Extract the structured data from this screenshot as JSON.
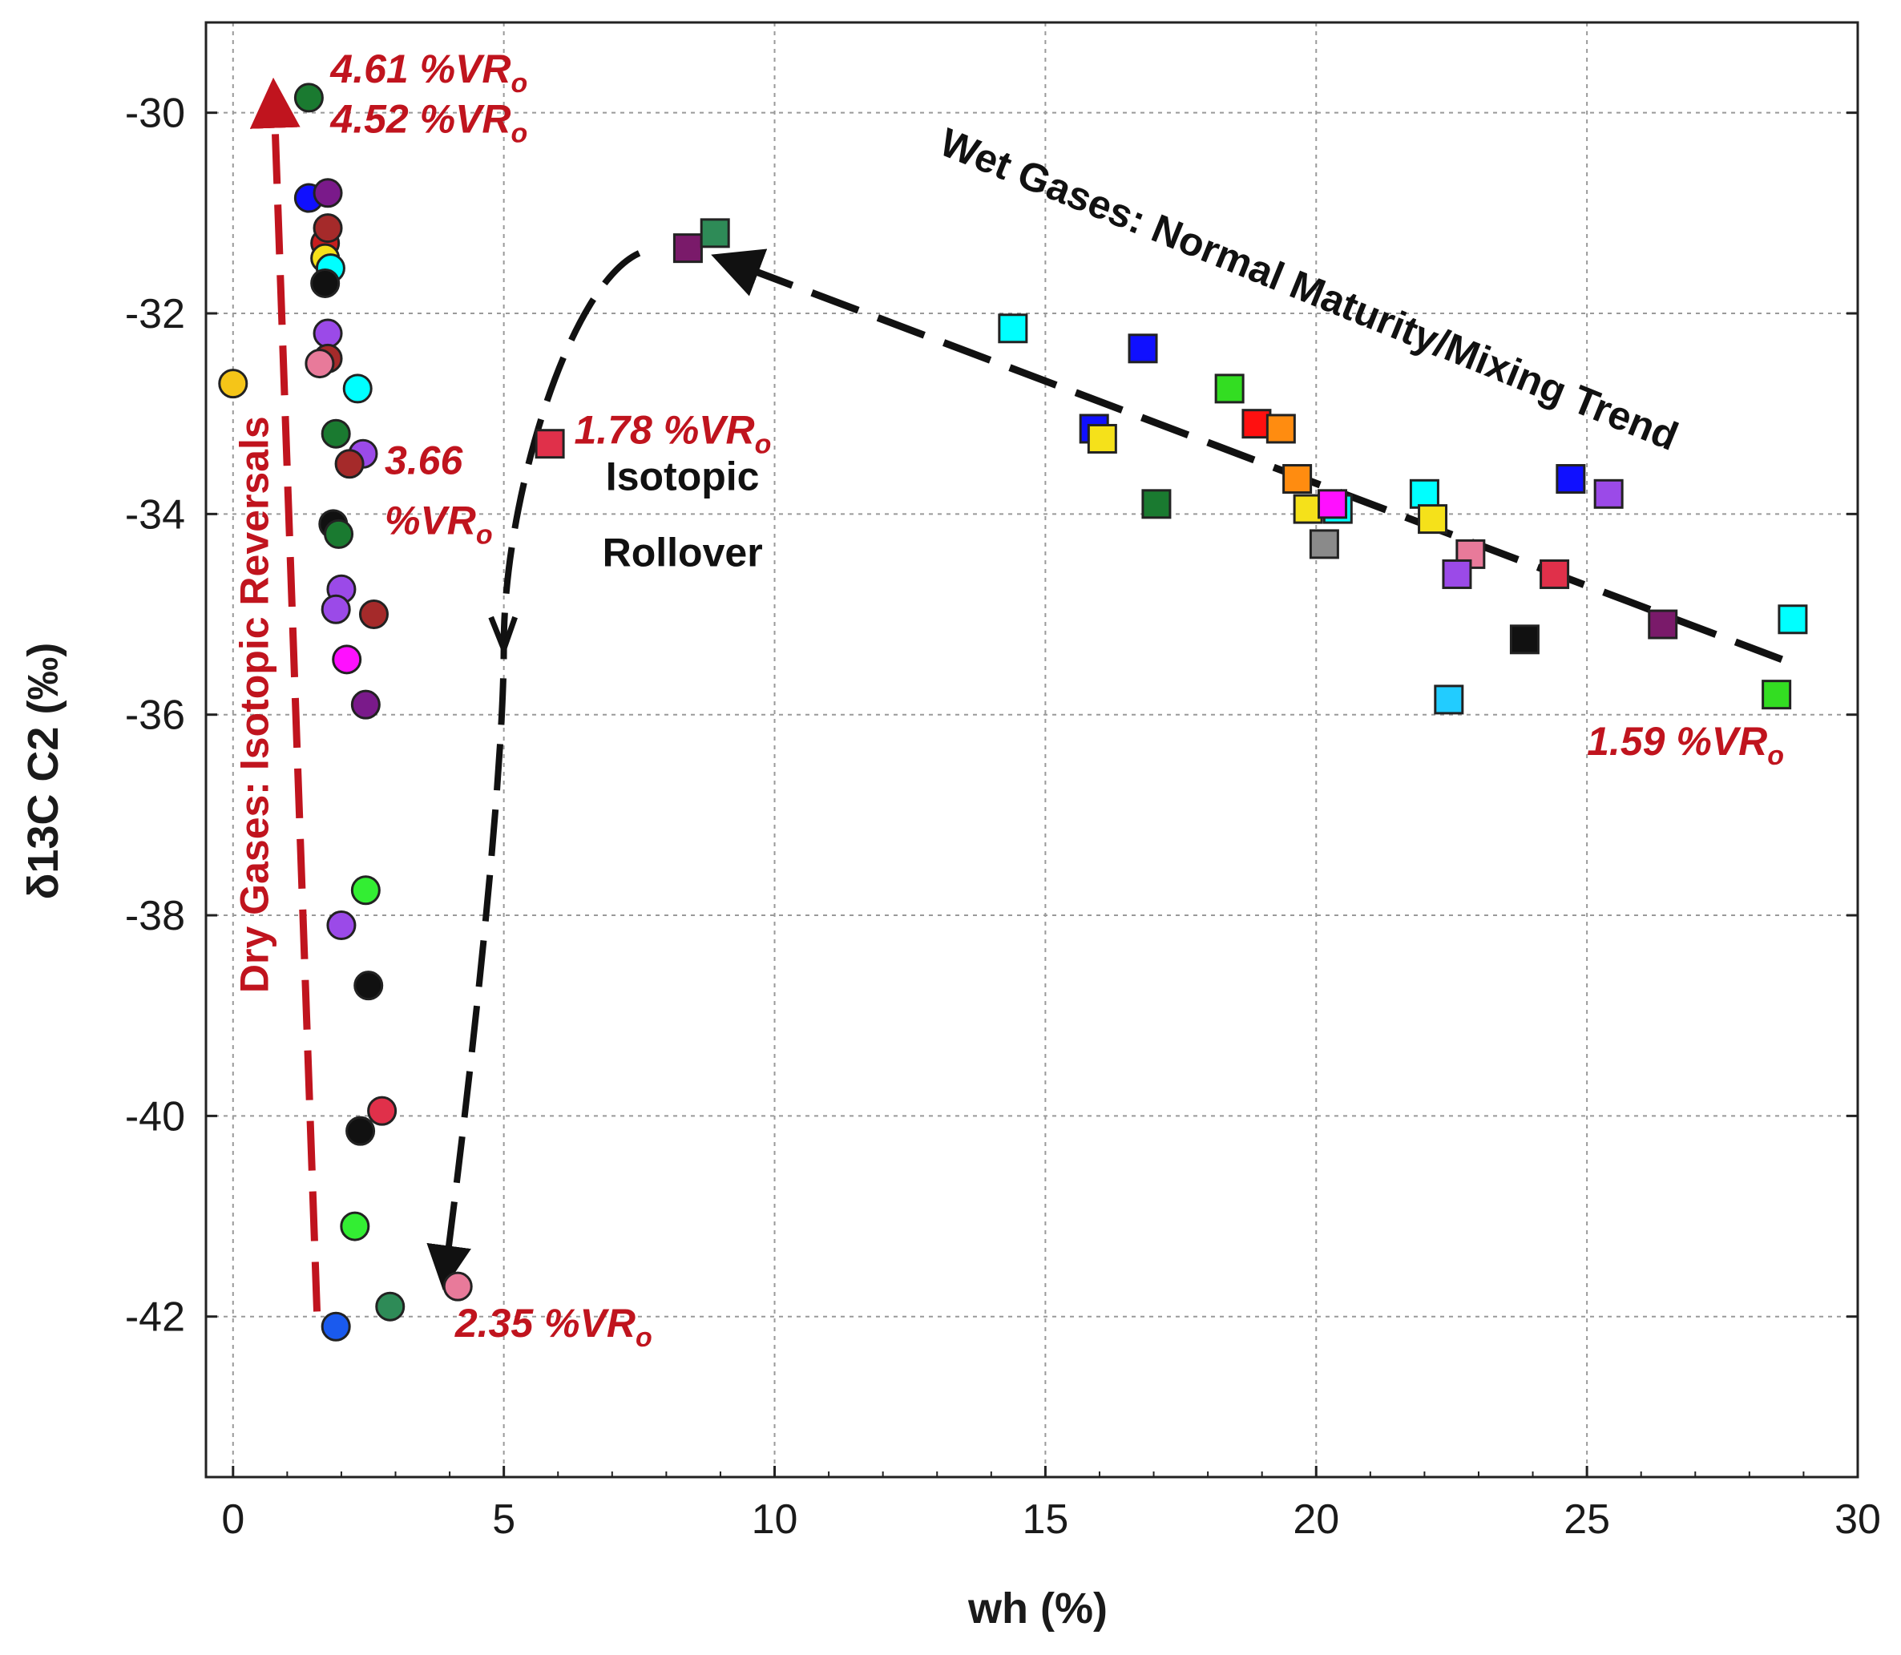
{
  "chart_data": {
    "type": "scatter",
    "title": "",
    "xlabel": "wh (%)",
    "ylabel": "δ13C C2 (‰)",
    "xlim": [
      -0.5,
      30
    ],
    "ylim": [
      -43.6,
      -29.1
    ],
    "x_ticks": [
      0,
      5,
      10,
      15,
      20,
      25,
      30
    ],
    "y_ticks": [
      -30,
      -32,
      -34,
      -36,
      -38,
      -40,
      -42
    ],
    "grid": true,
    "series": [
      {
        "name": "Dry gases (circles)",
        "marker": "circle",
        "points": [
          {
            "x": 0.0,
            "y": -32.7,
            "color": "#f5c518"
          },
          {
            "x": 1.4,
            "y": -29.85,
            "color": "#1a7a30"
          },
          {
            "x": 1.4,
            "y": -30.85,
            "color": "#1010ff"
          },
          {
            "x": 1.75,
            "y": -30.8,
            "color": "#7a1a8a"
          },
          {
            "x": 1.7,
            "y": -31.3,
            "color": "#c81e1e"
          },
          {
            "x": 1.75,
            "y": -31.15,
            "color": "#a52a2a"
          },
          {
            "x": 1.7,
            "y": -31.45,
            "color": "#f5e11a"
          },
          {
            "x": 1.8,
            "y": -31.55,
            "color": "#00ffff"
          },
          {
            "x": 1.7,
            "y": -31.7,
            "color": "#111111"
          },
          {
            "x": 1.75,
            "y": -32.2,
            "color": "#9b4ae8"
          },
          {
            "x": 1.75,
            "y": -32.45,
            "color": "#a52a2a"
          },
          {
            "x": 1.6,
            "y": -32.5,
            "color": "#e87a9a"
          },
          {
            "x": 2.3,
            "y": -32.75,
            "color": "#00ffff"
          },
          {
            "x": 1.9,
            "y": -33.2,
            "color": "#1a7a30"
          },
          {
            "x": 2.4,
            "y": -33.4,
            "color": "#9b4ae8"
          },
          {
            "x": 2.15,
            "y": -33.5,
            "color": "#a52a2a"
          },
          {
            "x": 1.85,
            "y": -34.1,
            "color": "#111111"
          },
          {
            "x": 1.95,
            "y": -34.2,
            "color": "#1a7a30"
          },
          {
            "x": 2.0,
            "y": -34.75,
            "color": "#9b4ae8"
          },
          {
            "x": 1.9,
            "y": -34.95,
            "color": "#9b4ae8"
          },
          {
            "x": 2.6,
            "y": -35.0,
            "color": "#a52a2a"
          },
          {
            "x": 2.1,
            "y": -35.45,
            "color": "#ff10ff"
          },
          {
            "x": 2.45,
            "y": -35.9,
            "color": "#7a1a8a"
          },
          {
            "x": 2.45,
            "y": -37.75,
            "color": "#33ee33"
          },
          {
            "x": 2.0,
            "y": -38.1,
            "color": "#9b4ae8"
          },
          {
            "x": 2.5,
            "y": -38.7,
            "color": "#111111"
          },
          {
            "x": 2.75,
            "y": -39.95,
            "color": "#e0304a"
          },
          {
            "x": 2.35,
            "y": -40.15,
            "color": "#111111"
          },
          {
            "x": 2.25,
            "y": -41.1,
            "color": "#33ee33"
          },
          {
            "x": 4.15,
            "y": -41.7,
            "color": "#e87a9a"
          },
          {
            "x": 2.9,
            "y": -41.9,
            "color": "#2e8b57"
          },
          {
            "x": 1.9,
            "y": -42.1,
            "color": "#1a5aee"
          }
        ]
      },
      {
        "name": "Wet gases (squares)",
        "marker": "square",
        "points": [
          {
            "x": 8.4,
            "y": -31.35,
            "color": "#7a1a6a"
          },
          {
            "x": 8.9,
            "y": -31.2,
            "color": "#2e8b57"
          },
          {
            "x": 5.85,
            "y": -33.3,
            "color": "#e0304a"
          },
          {
            "x": 14.4,
            "y": -32.15,
            "color": "#00ffff"
          },
          {
            "x": 16.8,
            "y": -32.35,
            "color": "#1010ff"
          },
          {
            "x": 15.9,
            "y": -33.15,
            "color": "#1010ff"
          },
          {
            "x": 16.05,
            "y": -33.25,
            "color": "#f5e11a"
          },
          {
            "x": 17.05,
            "y": -33.9,
            "color": "#1a7a30"
          },
          {
            "x": 18.4,
            "y": -32.75,
            "color": "#33dd22"
          },
          {
            "x": 18.9,
            "y": -33.1,
            "color": "#ff1010"
          },
          {
            "x": 19.35,
            "y": -33.15,
            "color": "#ff8c10"
          },
          {
            "x": 19.65,
            "y": -33.65,
            "color": "#ff8c10"
          },
          {
            "x": 19.85,
            "y": -33.95,
            "color": "#f5e11a"
          },
          {
            "x": 20.15,
            "y": -34.3,
            "color": "#8a8a8a"
          },
          {
            "x": 20.4,
            "y": -33.95,
            "color": "#00ffff"
          },
          {
            "x": 20.3,
            "y": -33.9,
            "color": "#ff10ff"
          },
          {
            "x": 22.0,
            "y": -33.8,
            "color": "#00ffff"
          },
          {
            "x": 22.15,
            "y": -34.05,
            "color": "#f5e11a"
          },
          {
            "x": 22.85,
            "y": -34.4,
            "color": "#e87a9a"
          },
          {
            "x": 22.6,
            "y": -34.6,
            "color": "#9b4ae8"
          },
          {
            "x": 22.45,
            "y": -35.85,
            "color": "#22ccff"
          },
          {
            "x": 23.85,
            "y": -35.25,
            "color": "#111111"
          },
          {
            "x": 24.4,
            "y": -34.6,
            "color": "#e0304a"
          },
          {
            "x": 24.7,
            "y": -33.65,
            "color": "#1010ff"
          },
          {
            "x": 25.4,
            "y": -33.8,
            "color": "#9b4ae8"
          },
          {
            "x": 26.4,
            "y": -35.1,
            "color": "#7a1a6a"
          },
          {
            "x": 28.5,
            "y": -35.8,
            "color": "#33dd22"
          },
          {
            "x": 28.8,
            "y": -35.05,
            "color": "#00ffff"
          }
        ]
      }
    ],
    "annotations": {
      "vr_461": {
        "text": "4.61 %VR",
        "sub": "o",
        "x": 1.8,
        "y": -29.7
      },
      "vr_452": {
        "text": "4.52 %VR",
        "sub": "o",
        "x": 1.8,
        "y": -30.2
      },
      "vr_366_top": {
        "text": "3.66",
        "x": 2.8,
        "y": -33.6
      },
      "vr_366_bottom": {
        "text": "%VR",
        "sub": "o",
        "x": 2.8,
        "y": -34.2
      },
      "vr_178": {
        "text": "1.78 %VR",
        "sub": "o",
        "x": 6.3,
        "y": -33.3
      },
      "vr_235": {
        "text": "2.35 %VR",
        "sub": "o",
        "x": 4.1,
        "y": -42.2
      },
      "vr_159": {
        "text": "1.59 %VR",
        "sub": "o",
        "x": 25.0,
        "y": -36.4
      },
      "rollover_1": {
        "text": "Isotopic",
        "x": 8.3,
        "y": -34.0
      },
      "rollover_2": {
        "text": "Rollover",
        "x": 8.3,
        "y": -34.6
      },
      "wet_trend": {
        "text": "Wet Gases: Normal Maturity/Mixing Trend",
        "x1": 13.0,
        "y1": -30.4,
        "x2": 28.5,
        "y2": -33.8
      },
      "dry_trend": {
        "text": "Dry Gases: Isotopic Reversals"
      }
    },
    "trend_arrows": {
      "dry": {
        "x1": 1.55,
        "y1": -41.95,
        "x2": 0.75,
        "y2": -29.75,
        "color": "#c0141e"
      },
      "wet": {
        "x1": 28.6,
        "y1": -35.45,
        "x2": 9.0,
        "y2": -31.45,
        "color": "#111111"
      },
      "rollover_path": [
        [
          7.5,
          -31.4
        ],
        [
          6.2,
          -32.8
        ],
        [
          5.0,
          -35.3
        ],
        [
          4.3,
          -40.0
        ],
        [
          3.9,
          -41.65
        ]
      ]
    }
  }
}
